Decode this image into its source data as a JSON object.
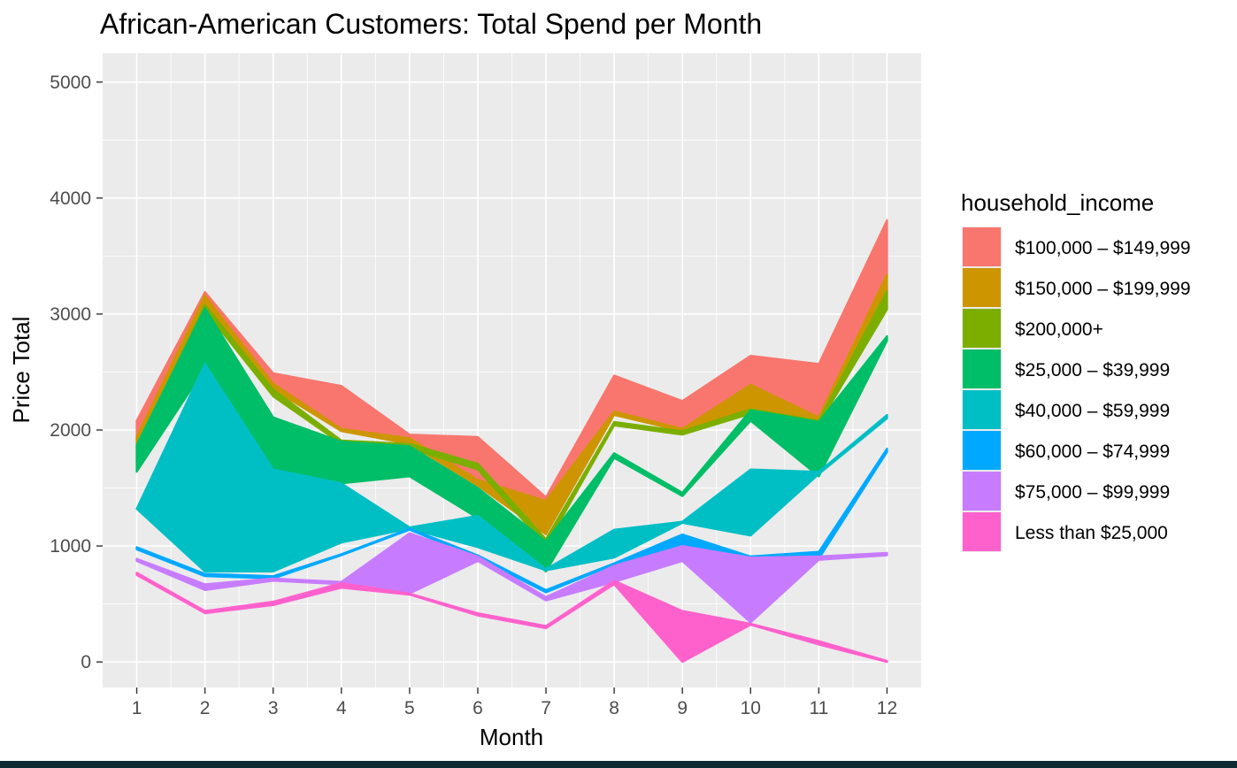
{
  "chart_data": {
    "type": "area",
    "title": "African-American Customers: Total Spend per Month",
    "xlabel": "Month",
    "ylabel": "Price Total",
    "x_ticks": [
      1,
      2,
      3,
      4,
      5,
      6,
      7,
      8,
      9,
      10,
      11,
      12
    ],
    "y_ticks": [
      0,
      1000,
      2000,
      3000,
      4000,
      5000
    ],
    "xlim": [
      0.5,
      12.5
    ],
    "ylim": [
      -220,
      5250
    ],
    "grid": true,
    "legend": {
      "title": "household_income",
      "position": "right"
    },
    "series": [
      {
        "name": "$100,000 – $149,999",
        "color": "#F8766D",
        "lower": [
          1890,
          3120,
          2380,
          2000,
          1930,
          1570,
          1400,
          2150,
          2000,
          2210,
          2100,
          3320
        ],
        "upper": [
          2080,
          3190,
          2490,
          2380,
          1960,
          1940,
          1420,
          2470,
          2250,
          2640,
          2570,
          3810
        ]
      },
      {
        "name": "$150,000 – $199,999",
        "color": "#CD9600",
        "lower": [
          1850,
          3080,
          2350,
          1990,
          1880,
          1520,
          1100,
          2130,
          1990,
          2180,
          2080,
          3200
        ],
        "upper": [
          1940,
          3160,
          2400,
          2010,
          1930,
          1570,
          1390,
          2160,
          2010,
          2390,
          2110,
          3340
        ]
      },
      {
        "name": "$200,000+",
        "color": "#7CAE00",
        "lower": [
          1720,
          3030,
          2290,
          1880,
          1840,
          1660,
          1000,
          2040,
          1960,
          2140,
          2050,
          3040
        ],
        "upper": [
          1840,
          3080,
          2350,
          1910,
          1880,
          1710,
          1060,
          2070,
          1990,
          2180,
          2080,
          3200
        ]
      },
      {
        "name": "$25,000 – $39,999",
        "color": "#00BE67",
        "lower": [
          1640,
          2530,
          1640,
          1540,
          1600,
          1240,
          780,
          1760,
          1430,
          2080,
          1600,
          2770
        ],
        "upper": [
          1870,
          3050,
          2110,
          1900,
          1860,
          1500,
          1040,
          1800,
          1460,
          2170,
          2070,
          2810
        ]
      },
      {
        "name": "$40,000 – $59,999",
        "color": "#00BFC4",
        "lower": [
          1320,
          780,
          780,
          1030,
          1150,
          990,
          790,
          900,
          1200,
          1090,
          1620,
          2100
        ],
        "upper": [
          1320,
          2570,
          1660,
          1540,
          1160,
          1260,
          800,
          1140,
          1210,
          1660,
          1640,
          2130
        ]
      },
      {
        "name": "$60,000 – $74,999",
        "color": "#00A9FF",
        "lower": [
          970,
          740,
          720,
          920,
          1140,
          900,
          600,
          840,
          990,
          890,
          890,
          1810
        ],
        "upper": [
          990,
          760,
          740,
          930,
          1150,
          920,
          620,
          850,
          1100,
          910,
          950,
          1840
        ]
      },
      {
        "name": "$75,000 – $99,999",
        "color": "#C77CFF",
        "lower": [
          870,
          620,
          700,
          670,
          590,
          870,
          530,
          690,
          870,
          340,
          880,
          920
        ],
        "upper": [
          890,
          670,
          720,
          690,
          1110,
          910,
          560,
          830,
          1000,
          900,
          910,
          940
        ]
      },
      {
        "name": "Less than $25,000",
        "color": "#FF61CC",
        "lower": [
          750,
          420,
          490,
          640,
          580,
          400,
          290,
          670,
          0,
          320,
          150,
          0
        ],
        "upper": [
          770,
          440,
          520,
          680,
          590,
          420,
          310,
          700,
          440,
          330,
          180,
          10
        ]
      }
    ]
  }
}
